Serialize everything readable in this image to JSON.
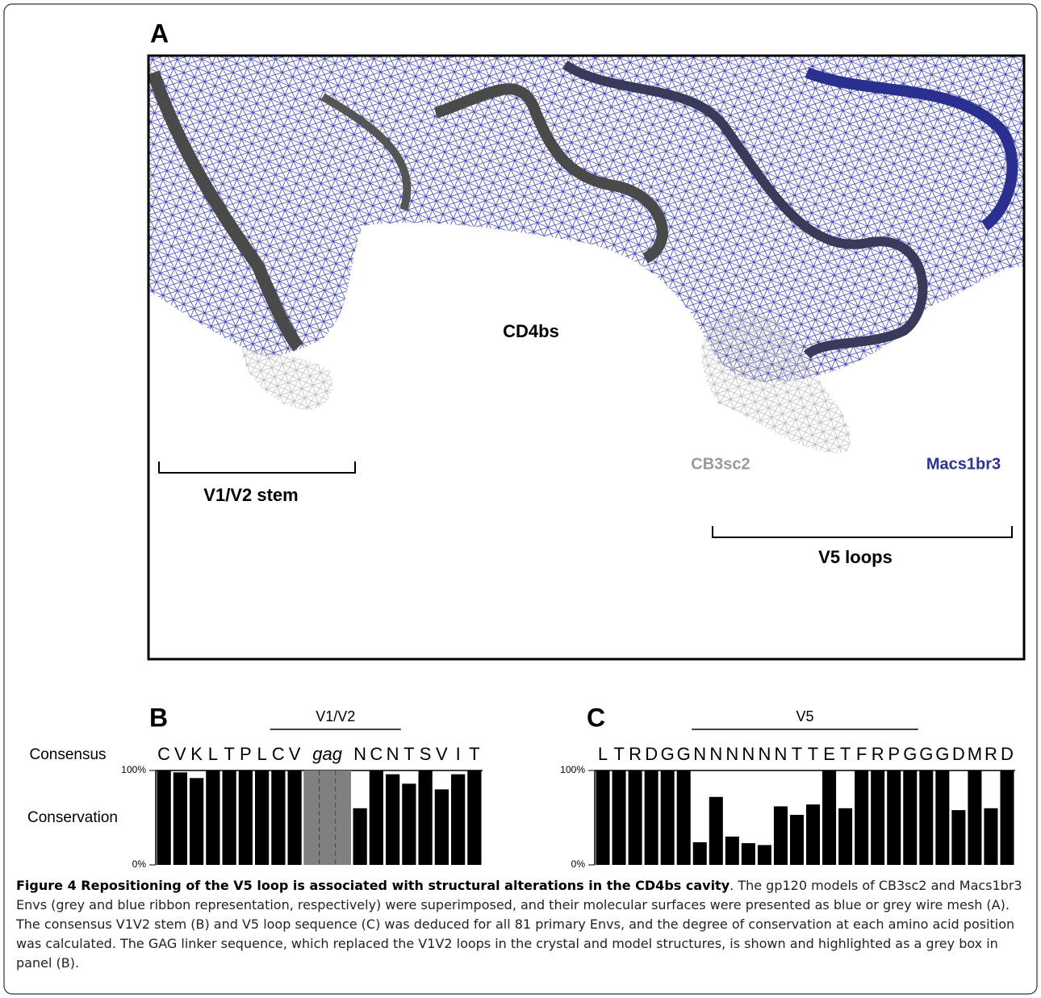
{
  "panel_a": {
    "label": "A",
    "cd4bs": "CD4bs",
    "cb3sc2": "CB3sc2",
    "macs1br3": "Macs1br3",
    "v1v2_stem": "V1/V2 stem",
    "v5_loops": "V5 loops"
  },
  "row_labels": {
    "consensus": "Consensus",
    "conservation": "Conservation"
  },
  "chart_data": [
    {
      "type": "bar",
      "panel": "B",
      "region": "V1/V2",
      "categories": [
        "C",
        "V",
        "K",
        "L",
        "T",
        "P",
        "L",
        "C",
        "V",
        "gag",
        "N",
        "C",
        "N",
        "T",
        "S",
        "V",
        "I",
        "T"
      ],
      "values": [
        100,
        98,
        92,
        100,
        100,
        100,
        100,
        100,
        100,
        null,
        60,
        100,
        96,
        86,
        100,
        80,
        96,
        100
      ],
      "color": "#000000",
      "highlight_color": "#808080",
      "ylim": [
        0,
        100
      ],
      "yticks": [
        {
          "value": 0,
          "label": "0%"
        },
        {
          "value": 100,
          "label": "100%"
        }
      ]
    },
    {
      "type": "bar",
      "panel": "C",
      "region": "V5",
      "categories": [
        "L",
        "T",
        "R",
        "D",
        "G",
        "G",
        "N",
        "N",
        "N",
        "N",
        "N",
        "N",
        "T",
        "T",
        "E",
        "T",
        "F",
        "R",
        "P",
        "G",
        "G",
        "G",
        "D",
        "M",
        "R",
        "D"
      ],
      "values": [
        100,
        100,
        100,
        100,
        100,
        100,
        24,
        72,
        30,
        23,
        21,
        62,
        53,
        64,
        100,
        60,
        100,
        100,
        100,
        100,
        100,
        100,
        58,
        100,
        60,
        100
      ],
      "color": "#000000",
      "ylim": [
        0,
        100
      ],
      "yticks": [
        {
          "value": 0,
          "label": "0%"
        },
        {
          "value": 100,
          "label": "100%"
        }
      ]
    }
  ],
  "caption": {
    "title": "Figure 4 Repositioning of the V5 loop is associated with structural alterations in the CD4bs cavity",
    "text": ". The gp120 models of CB3sc2 and Macs1br3 Envs (grey and blue ribbon representation, respectively) were superimposed, and their molecular surfaces were presented as blue or grey wire mesh (A). The consensus V1V2 stem (B) and V5 loop sequence (C) was deduced for all 81 primary Envs, and the degree of conservation at each amino acid position was calculated. The GAG linker sequence, which replaced the V1V2 loops in the crystal and model structures, is shown and highlighted as a grey box in panel (B)."
  }
}
